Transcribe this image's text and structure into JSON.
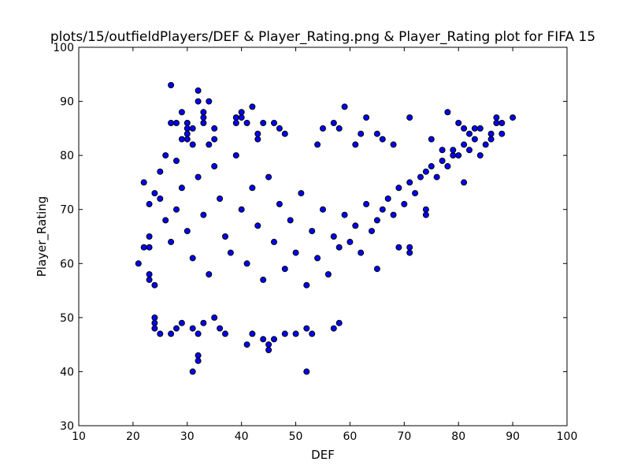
{
  "chart_data": {
    "type": "scatter",
    "title": "plots/15/outfieldPlayers/DEF & Player_Rating.png & Player_Rating plot for FIFA 15",
    "xlabel": "DEF",
    "ylabel": "Player_Rating",
    "xlim": [
      10,
      100
    ],
    "ylim": [
      30,
      100
    ],
    "xticks": [
      10,
      20,
      30,
      40,
      50,
      60,
      70,
      80,
      90,
      100
    ],
    "yticks": [
      30,
      40,
      50,
      60,
      70,
      80,
      90,
      100
    ],
    "grid": false,
    "marker_color": "#0000ff",
    "series": [
      {
        "points": [
          [
            21,
            60
          ],
          [
            22,
            75
          ],
          [
            22,
            63
          ],
          [
            23,
            71
          ],
          [
            23,
            65
          ],
          [
            23,
            58
          ],
          [
            23,
            57
          ],
          [
            23,
            63
          ],
          [
            24,
            56
          ],
          [
            24,
            50
          ],
          [
            24,
            49
          ],
          [
            24,
            48
          ],
          [
            24,
            73
          ],
          [
            25,
            77
          ],
          [
            25,
            47
          ],
          [
            26,
            80
          ],
          [
            27,
            86
          ],
          [
            27,
            93
          ],
          [
            27,
            47
          ],
          [
            28,
            86
          ],
          [
            28,
            48
          ],
          [
            28,
            79
          ],
          [
            29,
            88
          ],
          [
            29,
            83
          ],
          [
            29,
            49
          ],
          [
            30,
            86
          ],
          [
            30,
            85
          ],
          [
            30,
            84
          ],
          [
            30,
            83
          ],
          [
            31,
            40
          ],
          [
            31,
            82
          ],
          [
            31,
            85
          ],
          [
            31,
            48
          ],
          [
            32,
            92
          ],
          [
            32,
            90
          ],
          [
            32,
            43
          ],
          [
            32,
            42
          ],
          [
            32,
            47
          ],
          [
            33,
            88
          ],
          [
            33,
            87
          ],
          [
            33,
            86
          ],
          [
            33,
            49
          ],
          [
            34,
            90
          ],
          [
            34,
            82
          ],
          [
            35,
            85
          ],
          [
            35,
            83
          ],
          [
            35,
            50
          ],
          [
            36,
            48
          ],
          [
            37,
            47
          ],
          [
            39,
            87
          ],
          [
            39,
            86
          ],
          [
            40,
            88
          ],
          [
            40,
            87
          ],
          [
            41,
            86
          ],
          [
            41,
            45
          ],
          [
            42,
            89
          ],
          [
            42,
            47
          ],
          [
            43,
            83
          ],
          [
            43,
            84
          ],
          [
            44,
            86
          ],
          [
            44,
            46
          ],
          [
            45,
            44
          ],
          [
            45,
            45
          ],
          [
            46,
            86
          ],
          [
            46,
            46
          ],
          [
            47,
            85
          ],
          [
            48,
            84
          ],
          [
            48,
            47
          ],
          [
            50,
            47
          ],
          [
            52,
            40
          ],
          [
            52,
            48
          ],
          [
            53,
            47
          ],
          [
            54,
            82
          ],
          [
            55,
            85
          ],
          [
            57,
            86
          ],
          [
            57,
            48
          ],
          [
            58,
            85
          ],
          [
            58,
            49
          ],
          [
            59,
            89
          ],
          [
            61,
            82
          ],
          [
            62,
            84
          ],
          [
            63,
            87
          ],
          [
            65,
            84
          ],
          [
            65,
            59
          ],
          [
            66,
            83
          ],
          [
            68,
            82
          ],
          [
            69,
            63
          ],
          [
            71,
            87
          ],
          [
            71,
            62
          ],
          [
            71,
            63
          ],
          [
            74,
            70
          ],
          [
            74,
            69
          ],
          [
            75,
            83
          ],
          [
            77,
            81
          ],
          [
            78,
            88
          ],
          [
            79,
            80
          ],
          [
            80,
            86
          ],
          [
            81,
            85
          ],
          [
            81,
            75
          ],
          [
            82,
            84
          ],
          [
            83,
            85
          ],
          [
            84,
            85
          ],
          [
            84,
            80
          ],
          [
            86,
            83
          ],
          [
            86,
            84
          ],
          [
            87,
            87
          ],
          [
            87,
            86
          ],
          [
            88,
            86
          ],
          [
            88,
            84
          ],
          [
            90,
            87
          ],
          [
            25,
            72
          ],
          [
            26,
            68
          ],
          [
            27,
            64
          ],
          [
            28,
            70
          ],
          [
            29,
            74
          ],
          [
            30,
            66
          ],
          [
            31,
            61
          ],
          [
            32,
            76
          ],
          [
            33,
            69
          ],
          [
            34,
            58
          ],
          [
            35,
            78
          ],
          [
            36,
            72
          ],
          [
            37,
            65
          ],
          [
            38,
            62
          ],
          [
            39,
            80
          ],
          [
            40,
            70
          ],
          [
            41,
            60
          ],
          [
            42,
            74
          ],
          [
            43,
            67
          ],
          [
            44,
            57
          ],
          [
            45,
            76
          ],
          [
            46,
            64
          ],
          [
            47,
            71
          ],
          [
            48,
            59
          ],
          [
            49,
            68
          ],
          [
            50,
            62
          ],
          [
            51,
            73
          ],
          [
            52,
            56
          ],
          [
            53,
            66
          ],
          [
            54,
            61
          ],
          [
            55,
            70
          ],
          [
            56,
            58
          ],
          [
            57,
            65
          ],
          [
            58,
            63
          ],
          [
            59,
            69
          ],
          [
            60,
            64
          ],
          [
            61,
            67
          ],
          [
            62,
            62
          ],
          [
            63,
            71
          ],
          [
            64,
            66
          ],
          [
            65,
            68
          ],
          [
            66,
            70
          ],
          [
            67,
            72
          ],
          [
            68,
            69
          ],
          [
            69,
            74
          ],
          [
            70,
            71
          ],
          [
            71,
            75
          ],
          [
            72,
            73
          ],
          [
            73,
            76
          ],
          [
            74,
            77
          ],
          [
            75,
            78
          ],
          [
            76,
            76
          ],
          [
            77,
            79
          ],
          [
            78,
            78
          ],
          [
            79,
            81
          ],
          [
            80,
            80
          ],
          [
            81,
            82
          ],
          [
            82,
            81
          ],
          [
            83,
            83
          ],
          [
            85,
            82
          ]
        ]
      }
    ]
  }
}
